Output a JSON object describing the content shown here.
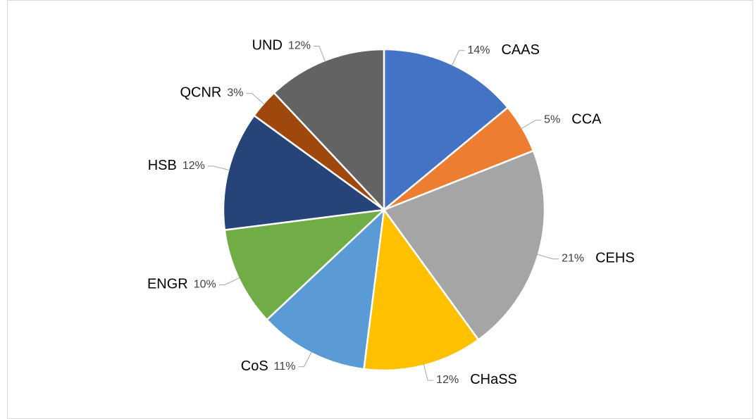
{
  "chart_data": {
    "type": "pie",
    "categories": [
      "CAAS",
      "CCA",
      "CEHS",
      "CHaSS",
      "CoS",
      "ENGR",
      "HSB",
      "QCNR",
      "UND"
    ],
    "values": [
      14,
      5,
      21,
      12,
      11,
      10,
      12,
      3,
      12
    ],
    "value_labels": [
      "14%",
      "5%",
      "21%",
      "12%",
      "11%",
      "10%",
      "12%",
      "3%",
      "12%"
    ],
    "colors": [
      "#4472c4",
      "#ed7d31",
      "#a5a5a5",
      "#ffc000",
      "#5b9bd5",
      "#70ad47",
      "#264478",
      "#9e480e",
      "#636363"
    ]
  }
}
